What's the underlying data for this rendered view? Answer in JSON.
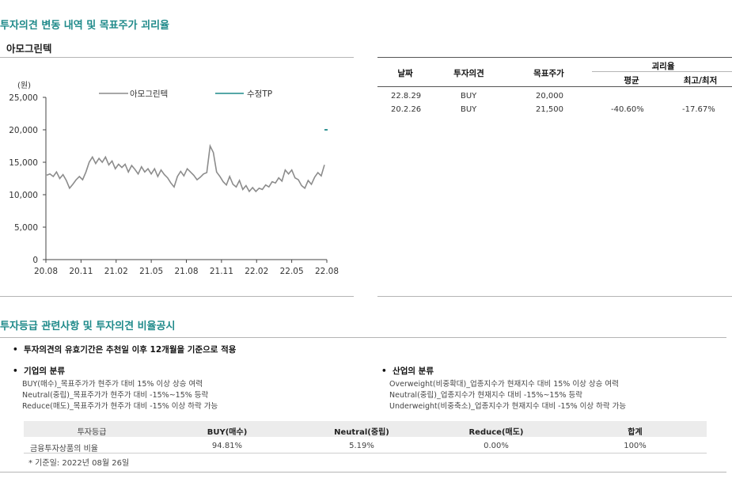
{
  "title": "투자의견 변동 내역 및 목표주가 괴리율",
  "company": "아모그린텍",
  "chart_data": {
    "type": "line",
    "unit_label": "(원)",
    "y_ticks": [
      "25,000",
      "20,000",
      "15,000",
      "10,000",
      "5,000",
      "0"
    ],
    "x_ticks": [
      "20.08",
      "20.11",
      "21.02",
      "21.05",
      "21.08",
      "21.11",
      "22.02",
      "22.05",
      "22.08"
    ],
    "ylim": [
      0,
      25000
    ],
    "series": [
      {
        "name": "아모그린텍",
        "color": "#8c8c8c",
        "values": [
          13000,
          13200,
          12800,
          13500,
          12500,
          13100,
          12200,
          11000,
          11600,
          12300,
          12800,
          12300,
          13500,
          15000,
          15800,
          14800,
          15600,
          15000,
          15800,
          14600,
          15200,
          14000,
          14700,
          14200,
          14700,
          13500,
          14500,
          13900,
          13200,
          14300,
          13500,
          14000,
          13200,
          14000,
          12800,
          13800,
          13100,
          12600,
          11800,
          11200,
          12800,
          13600,
          12900,
          14000,
          13500,
          13000,
          12300,
          12700,
          13200,
          13400,
          17500,
          16500,
          13500,
          12800,
          12000,
          11500,
          12800,
          11600,
          11200,
          12200,
          10800,
          11400,
          10500,
          11100,
          10500,
          11000,
          10800,
          11500,
          11200,
          12000,
          11800,
          12600,
          12100,
          13800,
          13200,
          13800,
          12600,
          12300,
          11400,
          11000,
          12200,
          11600,
          12700,
          13400,
          12900,
          14600
        ]
      },
      {
        "name": "수정TP",
        "color": "#1f8a8a",
        "values": [
          20000
        ]
      }
    ]
  },
  "table": {
    "headers": {
      "date": "날짜",
      "opinion": "투자의견",
      "target": "목표주가",
      "disparity": "괴리율",
      "avg": "평균",
      "maxmin": "최고/최저"
    },
    "rows": [
      {
        "date": "22.8.29",
        "opinion": "BUY",
        "target": "20,000",
        "avg": "",
        "maxmin": ""
      },
      {
        "date": "20.2.26",
        "opinion": "BUY",
        "target": "21,500",
        "avg": "-40.60%",
        "maxmin": "-17.67%"
      }
    ]
  },
  "disclosure": {
    "title": "투자등급 관련사항 및 투자의견 비율공시",
    "validity_note": "투자의견의 유효기간은 추천일 이후 12개월을 기준으로 적용",
    "company_class": {
      "title": "기업의 분류",
      "lines": [
        "BUY(매수)_목표주가가 현주가 대비 15% 이상 상승 여력",
        "Neutral(중립)_목표주가가 현주가 대비 -15%~15% 등락",
        "Reduce(매도)_목표주가가 현주가 대비 -15% 이상 하락 가능"
      ]
    },
    "industry_class": {
      "title": "산업의 분류",
      "lines": [
        "Overweight(비중확대)_업종지수가 현재지수 대비 15% 이상 상승 여력",
        "Neutral(중립)_업종지수가 현재지수 대비 -15%~15% 등락",
        "Underweight(비중축소)_업종지수가 현재지수 대비 -15% 이상 하락 가능"
      ]
    },
    "ratio_table": {
      "headers": [
        "투자등급",
        "BUY(매수)",
        "Neutral(중립)",
        "Reduce(매도)",
        "합계"
      ],
      "row": [
        "금융투자상품의 비율",
        "94.81%",
        "5.19%",
        "0.00%",
        "100%"
      ]
    },
    "basis_date": "* 기준일: 2022년 08월 26일"
  }
}
